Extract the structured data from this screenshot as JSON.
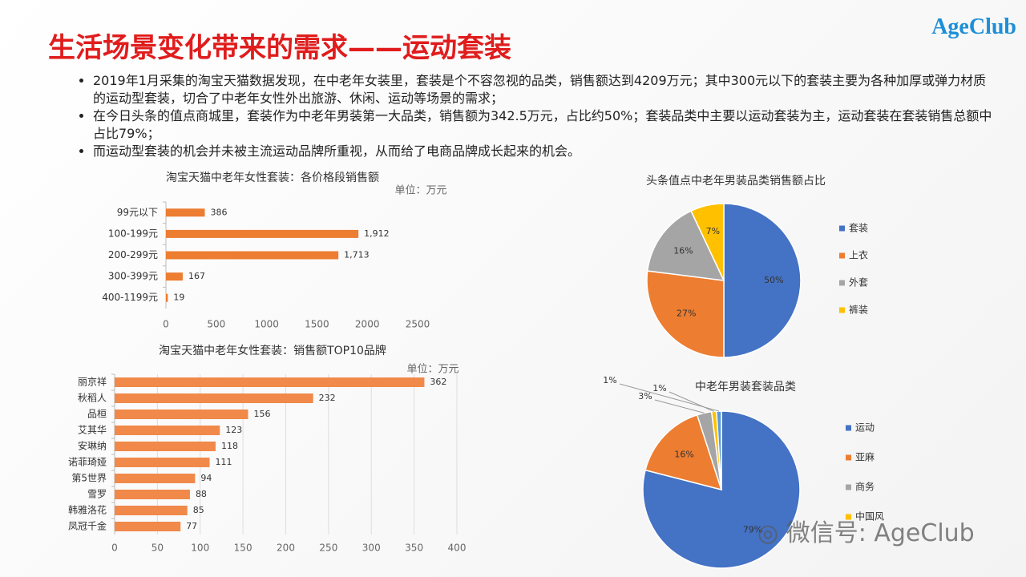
{
  "slide": {
    "title": "生活场景变化带来的需求——运动套装",
    "logo": "AgeClub",
    "watermark": "微信号: AgeClub",
    "bullets": [
      "2019年1月采集的淘宝天猫数据发现，在中老年女装里，套装是个不容忽视的品类，销售额达到4209万元；其中300元以下的套装主要为各种加厚或弹力材质的运动型套装，切合了中老年女性外出旅游、休闲、运动等场景的需求；",
      "在今日头条的值点商城里，套装作为中老年男装第一大品类，销售额为342.5万元，占比约50%；套装品类中主要以运动套装为主，运动套装在套装销售总额中占比79%；",
      "而运动型套装的机会并未被主流运动品牌所重视，从而给了电商品牌成长起来的机会。"
    ]
  },
  "chart_data": [
    {
      "type": "hbar",
      "title": "淘宝天猫中老年女性套装：各价格段销售额",
      "subtitle": "单位：万元",
      "categories": [
        "99元以下",
        "100-199元",
        "200-299元",
        "300-399元",
        "400-1199元"
      ],
      "values": [
        386,
        1912,
        1713,
        167,
        19
      ],
      "value_labels": [
        "386",
        "1,912",
        "1,713",
        "167",
        "19"
      ],
      "color": "#ed7d31",
      "xlim": [
        0,
        2500
      ],
      "xticks": [
        0,
        500,
        1000,
        1500,
        2000,
        2500
      ],
      "grid": false
    },
    {
      "type": "hbar",
      "title": "淘宝天猫中老年女性套装：销售额TOP10品牌",
      "subtitle": "单位：万元",
      "categories": [
        "丽京祥",
        "秋稻人",
        "品桓",
        "艾其华",
        "安琳纳",
        "诺菲琦娅",
        "第5世界",
        "雪罗",
        "韩雅洛花",
        "凤冠千金"
      ],
      "values": [
        362,
        232,
        156,
        123,
        118,
        111,
        94,
        88,
        85,
        77
      ],
      "color": "#f0894a",
      "xlim": [
        0,
        400
      ],
      "xticks": [
        0,
        50,
        100,
        150,
        200,
        250,
        300,
        350,
        400
      ],
      "grid": true
    },
    {
      "type": "pie",
      "title": "头条值点中老年男装品类销售额占比",
      "categories": [
        "套装",
        "上衣",
        "外套",
        "裤装"
      ],
      "values": [
        50,
        27,
        16,
        7
      ],
      "value_labels": [
        "50%",
        "27%",
        "16%",
        "7%"
      ],
      "colors": [
        "#4472c4",
        "#ed7d31",
        "#a5a5a5",
        "#ffc000"
      ]
    },
    {
      "type": "pie",
      "title": "中老年男装套装品类",
      "categories": [
        "运动",
        "亚麻",
        "商务",
        "中国风",
        null
      ],
      "values": [
        79,
        16,
        3,
        1,
        1
      ],
      "value_labels": [
        "79%",
        "16%",
        "3%",
        "1%",
        "1%"
      ],
      "colors": [
        "#4472c4",
        "#ed7d31",
        "#a5a5a5",
        "#ffc000",
        "#5b9bd5"
      ]
    }
  ]
}
